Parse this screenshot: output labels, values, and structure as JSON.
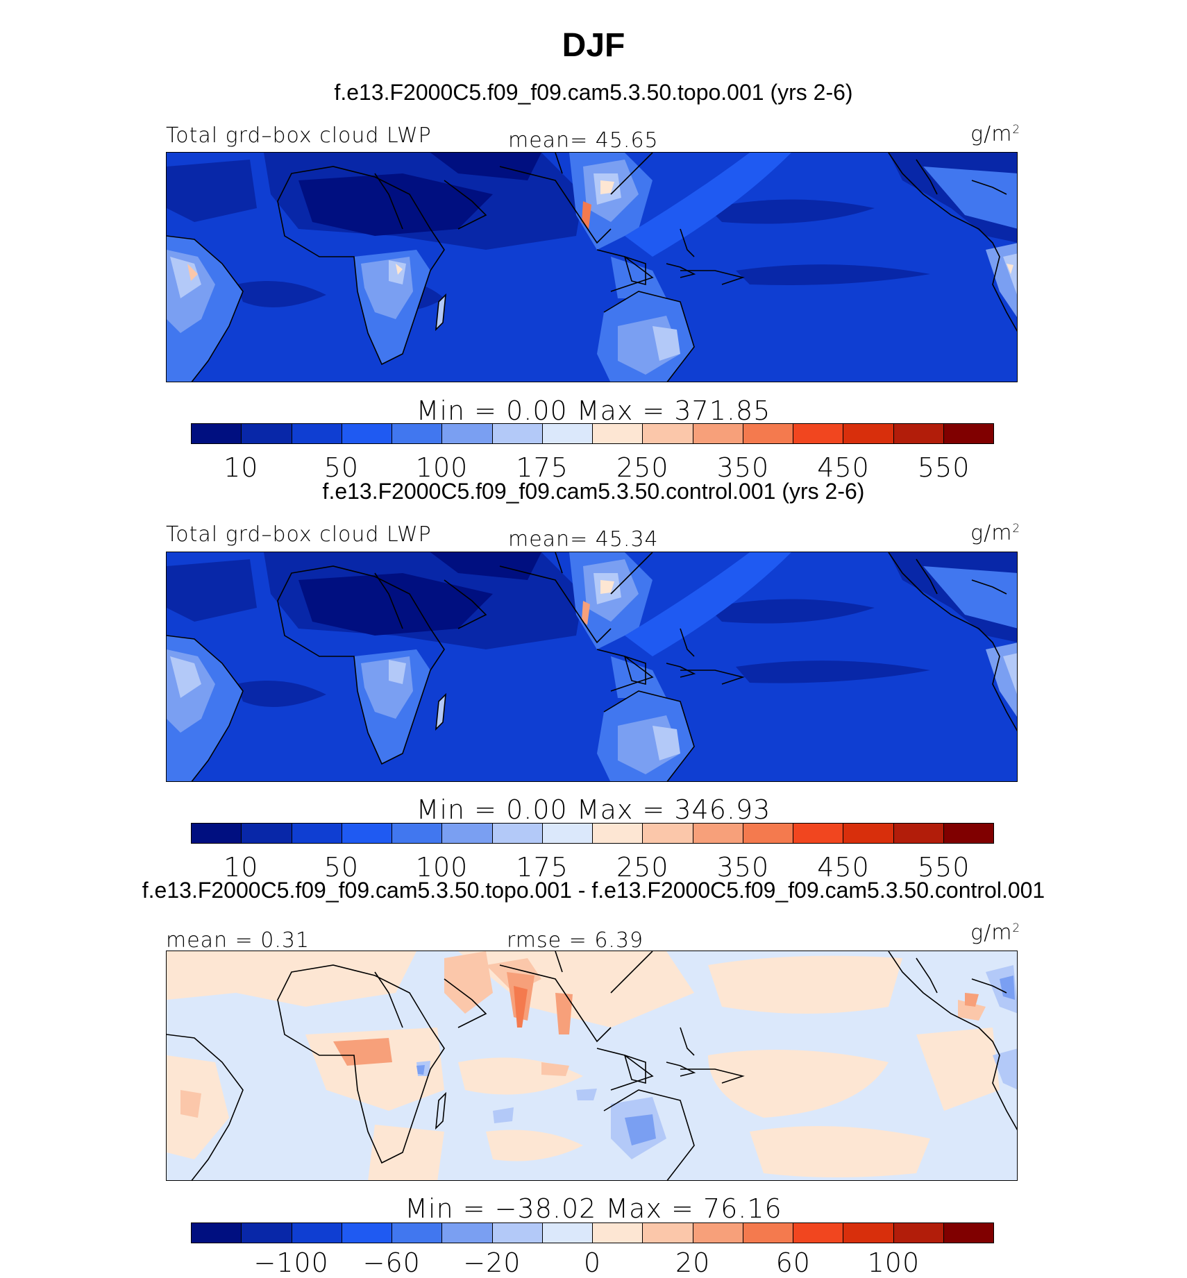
{
  "figure_title": "DJF",
  "panels": [
    {
      "case": "f.e13.F2000C5.f09_f09.cam5.3.50.topo.001 (yrs 2-6)",
      "left_label": "Total grd–box cloud LWP",
      "center_label": "mean=  45.65",
      "units": "g/m",
      "units_sup": "2",
      "minmax": "Min  =    0.00  Max  =  371.85"
    },
    {
      "case": "f.e13.F2000C5.f09_f09.cam5.3.50.control.001 (yrs 2-6)",
      "left_label": "Total grd–box cloud LWP",
      "center_label": "mean=  45.34",
      "units": "g/m",
      "units_sup": "2",
      "minmax": "Min  =    0.00  Max  =  346.93"
    },
    {
      "case": "f.e13.F2000C5.f09_f09.cam5.3.50.topo.001 - f.e13.F2000C5.f09_f09.cam5.3.50.control.001",
      "left_label": "mean  =    0.31",
      "center_label": "rmse  =     6.39",
      "units": "g/m",
      "units_sup": "2",
      "minmax": "Min  =  −38.02  Max  =    76.16"
    }
  ],
  "colorbars": {
    "colors": [
      "#000f80",
      "#0827a8",
      "#0f3ed2",
      "#1f5af2",
      "#4177ef",
      "#7a9ff2",
      "#b3c9f8",
      "#dbe8fb",
      "#fde6d3",
      "#fbc7aa",
      "#f7a07a",
      "#f47a4e",
      "#f1461f",
      "#d82f0c",
      "#b21d0a",
      "#800000"
    ],
    "lwp_ticks": [
      "10",
      "50",
      "100",
      "175",
      "250",
      "350",
      "450",
      "550"
    ],
    "diff_ticks": [
      "−100",
      "−60",
      "−20",
      "0",
      "20",
      "60",
      "100"
    ]
  },
  "chart_data": {
    "type": "heatmap",
    "title": "DJF",
    "variable": "Total grd–box cloud LWP",
    "units": "g/m2",
    "panels": [
      {
        "name": "f.e13.F2000C5.f09_f09.cam5.3.50.topo.001 (yrs 2-6)",
        "mean": 45.65,
        "min": 0.0,
        "max": 371.85
      },
      {
        "name": "f.e13.F2000C5.f09_f09.cam5.3.50.control.001 (yrs 2-6)",
        "mean": 45.34,
        "min": 0.0,
        "max": 346.93
      },
      {
        "name": "f.e13.F2000C5.f09_f09.cam5.3.50.topo.001 - f.e13.F2000C5.f09_f09.cam5.3.50.control.001",
        "mean": 0.31,
        "rmse": 6.39,
        "min": -38.02,
        "max": 76.16
      }
    ],
    "lwp_levels": [
      10,
      50,
      100,
      175,
      250,
      350,
      450,
      550
    ],
    "diff_levels": [
      -100,
      -60,
      -20,
      0,
      20,
      60,
      100
    ]
  }
}
